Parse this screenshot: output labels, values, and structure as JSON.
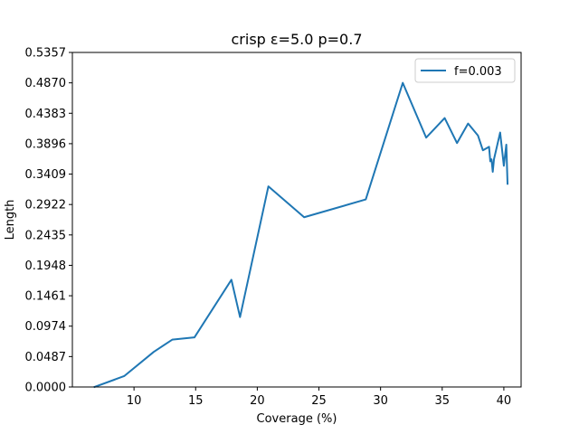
{
  "chart_data": {
    "type": "line",
    "title": "crisp ε=5.0 p=0.7",
    "xlabel": "Coverage (%)",
    "ylabel": "Length",
    "xlim": [
      5.0,
      41.4
    ],
    "ylim": [
      0.0,
      0.5357
    ],
    "xticks": [
      10,
      15,
      20,
      25,
      30,
      35,
      40
    ],
    "xtick_labels": [
      "10",
      "15",
      "20",
      "25",
      "30",
      "35",
      "40"
    ],
    "yticks": [
      0.0,
      0.0487,
      0.0974,
      0.1461,
      0.1948,
      0.2435,
      0.2922,
      0.3409,
      0.3896,
      0.4383,
      0.487,
      0.5357
    ],
    "ytick_labels": [
      "0.0000",
      "0.0487",
      "0.0974",
      "0.1461",
      "0.1948",
      "0.2435",
      "0.2922",
      "0.3409",
      "0.3896",
      "0.4383",
      "0.4870",
      "0.5357"
    ],
    "grid": false,
    "legend_position": "top-right",
    "series": [
      {
        "name": "f=0.003",
        "color": "#1f77b4",
        "x": [
          6.8,
          9.2,
          11.6,
          13.1,
          14.9,
          17.9,
          18.6,
          20.9,
          23.8,
          28.8,
          31.8,
          33.7,
          35.2,
          36.2,
          37.1,
          37.9,
          38.3,
          38.8,
          38.9,
          39.0,
          39.1,
          39.2,
          39.7,
          40.0,
          40.2,
          40.3
        ],
        "y": [
          0.0,
          0.0174,
          0.0562,
          0.0758,
          0.0794,
          0.1717,
          0.1119,
          0.3213,
          0.2718,
          0.3003,
          0.487,
          0.3993,
          0.4306,
          0.3906,
          0.4218,
          0.4027,
          0.379,
          0.3846,
          0.3614,
          0.3646,
          0.3445,
          0.3647,
          0.4075,
          0.3542,
          0.388,
          0.3254
        ]
      }
    ]
  }
}
